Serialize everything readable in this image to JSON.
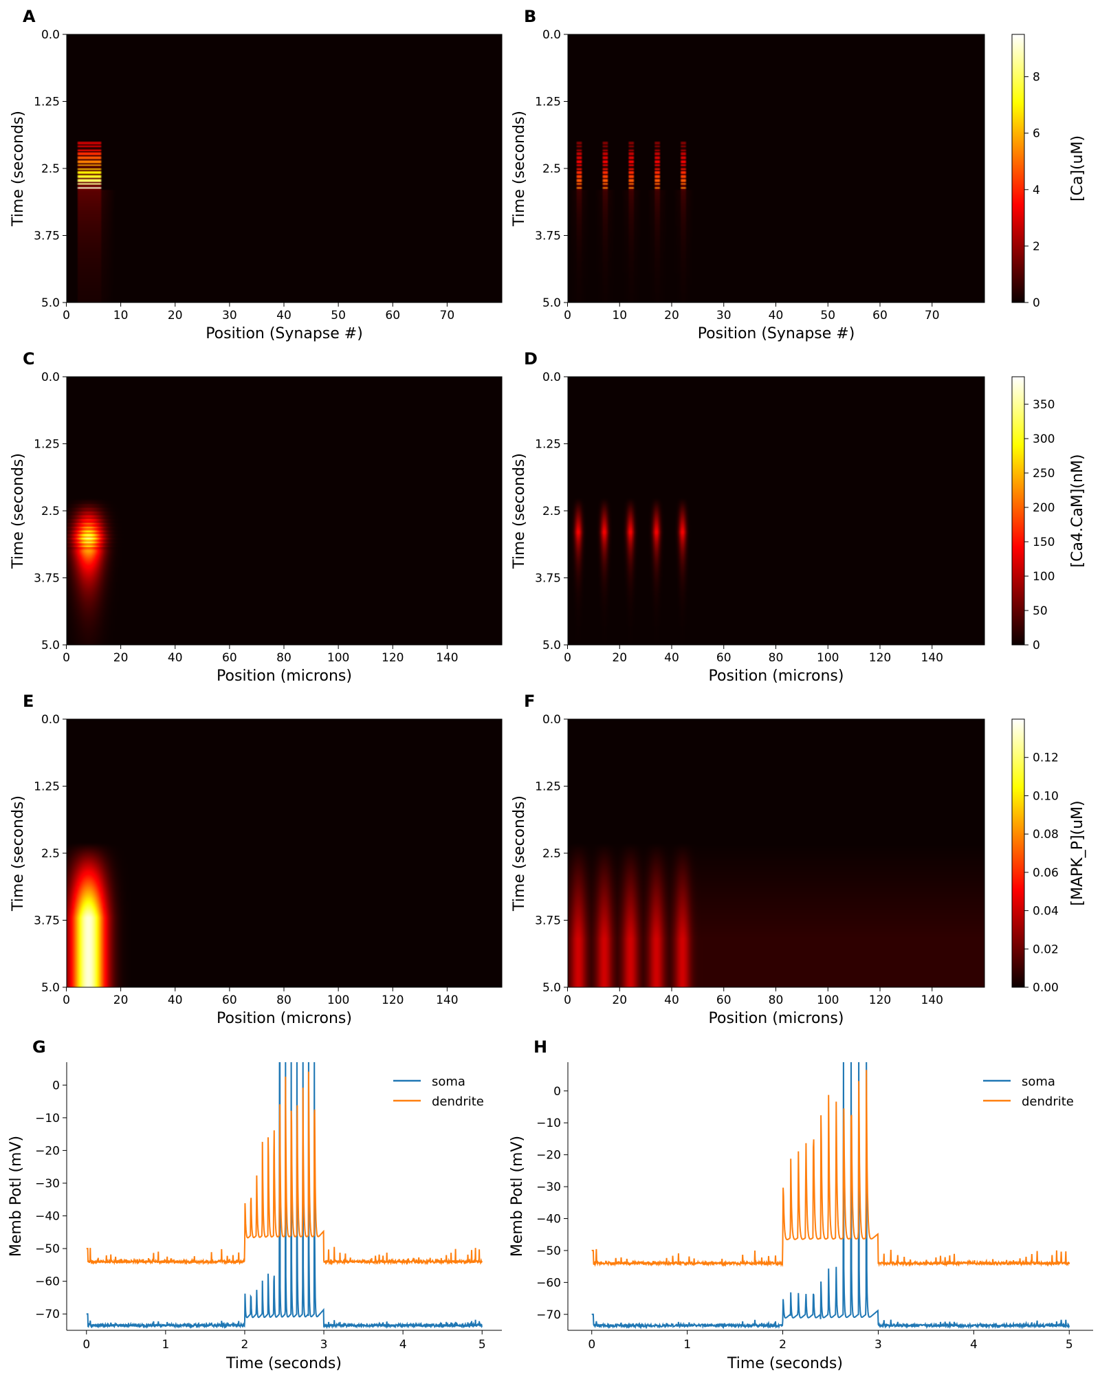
{
  "figure": {
    "panel_letters": [
      "A",
      "B",
      "C",
      "D",
      "E",
      "F",
      "G",
      "H"
    ]
  },
  "colors": {
    "colormap": "hot",
    "soma": "#1f77b4",
    "dendrite": "#ff7f0e",
    "background": "#ffffff"
  },
  "chart_data": [
    {
      "panel": "A",
      "type": "heatmap",
      "colormap": "hot",
      "xlabel": "Position (Synapse #)",
      "ylabel": "Time (seconds)",
      "xlim": [
        0,
        80
      ],
      "ylim": [
        5.0,
        0.0
      ],
      "xticks": [
        "0",
        "10",
        "20",
        "30",
        "40",
        "50",
        "60",
        "70"
      ],
      "yticks": [
        "0.0",
        "1.25",
        "2.5",
        "3.75",
        "5.0"
      ],
      "color_range": [
        0,
        9.5
      ],
      "description_values": {
        "active_positions": [
          [
            2,
            6
          ]
        ],
        "stim_time": [
          2.0,
          2.9
        ],
        "peak": 9.4
      }
    },
    {
      "panel": "B",
      "type": "heatmap",
      "colormap": "hot",
      "xlabel": "Position (Synapse #)",
      "ylabel": "Time (seconds)",
      "xlim": [
        0,
        80
      ],
      "ylim": [
        5.0,
        0.0
      ],
      "xticks": [
        "0",
        "10",
        "20",
        "30",
        "40",
        "50",
        "60",
        "70"
      ],
      "yticks": [
        "0.0",
        "1.25",
        "2.5",
        "3.75",
        "5.0"
      ],
      "colorbar": {
        "label": "[Ca](uM)",
        "ticks": [
          "0",
          "2",
          "4",
          "6",
          "8"
        ],
        "range": [
          0,
          9.5
        ]
      },
      "description_values": {
        "active_positions": [
          2,
          7,
          12,
          17,
          22
        ],
        "stim_time": [
          2.0,
          2.9
        ],
        "peak": 5.5
      }
    },
    {
      "panel": "C",
      "type": "heatmap",
      "colormap": "hot",
      "xlabel": "Position (microns)",
      "ylabel": "Time (seconds)",
      "xlim": [
        0,
        160
      ],
      "ylim": [
        5.0,
        0.0
      ],
      "xticks": [
        "0",
        "20",
        "40",
        "60",
        "80",
        "100",
        "120",
        "140"
      ],
      "yticks": [
        "0.0",
        "1.25",
        "2.5",
        "3.75",
        "5.0"
      ],
      "color_range": [
        0,
        390
      ],
      "description_values": {
        "center_position": 8,
        "peak_time": 3.0,
        "peak": 380
      }
    },
    {
      "panel": "D",
      "type": "heatmap",
      "colormap": "hot",
      "xlabel": "Position (microns)",
      "ylabel": "Time (seconds)",
      "xlim": [
        0,
        160
      ],
      "ylim": [
        5.0,
        0.0
      ],
      "xticks": [
        "0",
        "20",
        "40",
        "60",
        "80",
        "100",
        "120",
        "140"
      ],
      "yticks": [
        "0.0",
        "1.25",
        "2.5",
        "3.75",
        "5.0"
      ],
      "colorbar": {
        "label": "[Ca4.CaM](nM)",
        "ticks": [
          "0",
          "50",
          "100",
          "150",
          "200",
          "250",
          "300",
          "350"
        ],
        "range": [
          0,
          390
        ]
      },
      "description_values": {
        "center_positions": [
          4,
          14,
          24,
          34,
          44
        ],
        "peak_time": 2.9,
        "peak": 140
      }
    },
    {
      "panel": "E",
      "type": "heatmap",
      "colormap": "hot",
      "xlabel": "Position (microns)",
      "ylabel": "Time (seconds)",
      "xlim": [
        0,
        160
      ],
      "ylim": [
        5.0,
        0.0
      ],
      "xticks": [
        "0",
        "20",
        "40",
        "60",
        "80",
        "100",
        "120",
        "140"
      ],
      "yticks": [
        "0.0",
        "1.25",
        "2.5",
        "3.75",
        "5.0"
      ],
      "color_range": [
        0,
        0.14
      ],
      "description_values": {
        "center_position": 8,
        "onset_time": 2.4,
        "peak": 0.135
      }
    },
    {
      "panel": "F",
      "type": "heatmap",
      "colormap": "hot",
      "xlabel": "Position (microns)",
      "ylabel": "Time (seconds)",
      "xlim": [
        0,
        160
      ],
      "ylim": [
        5.0,
        0.0
      ],
      "xticks": [
        "0",
        "20",
        "40",
        "60",
        "80",
        "100",
        "120",
        "140"
      ],
      "yticks": [
        "0.0",
        "1.25",
        "2.5",
        "3.75",
        "5.0"
      ],
      "colorbar": {
        "label": "[MAPK_P](uM)",
        "ticks": [
          "0.00",
          "0.02",
          "0.04",
          "0.06",
          "0.08",
          "0.10",
          "0.12"
        ],
        "range": [
          0,
          0.14
        ]
      },
      "description_values": {
        "center_positions": [
          4,
          14,
          24,
          34,
          44
        ],
        "onset_time": 2.4,
        "peak": 0.05
      }
    },
    {
      "panel": "G",
      "type": "line",
      "xlabel": "Time (seconds)",
      "ylabel": "Memb Potl (mV)",
      "xlim": [
        -0.25,
        5.25
      ],
      "ylim": [
        -75,
        7
      ],
      "xticks": [
        "0",
        "1",
        "2",
        "3",
        "4",
        "5"
      ],
      "yticks": [
        "−70",
        "−60",
        "−50",
        "−40",
        "−30",
        "−20",
        "−10",
        "0"
      ],
      "legend": {
        "position": "top-right",
        "entries": [
          "soma",
          "dendrite"
        ]
      },
      "series": [
        {
          "name": "soma",
          "baseline": -73.5,
          "burst_start": 2.0,
          "burst_end": 2.95,
          "burst_spike_peaks": [
            -63,
            -61,
            -60,
            -59,
            -55,
            -52,
            -48,
            -45,
            -42,
            -38,
            -35,
            -32,
            -30
          ],
          "reaches_top_from": 2.4
        },
        {
          "name": "dendrite",
          "baseline": -54,
          "burst_start": 2.0,
          "burst_end": 2.95,
          "burst_spike_peaks": [
            -35,
            -30,
            -24,
            -16,
            -10,
            -4,
            0,
            3,
            4,
            4,
            4,
            7,
            7
          ]
        }
      ]
    },
    {
      "panel": "H",
      "type": "line",
      "xlabel": "Time (seconds)",
      "ylabel": "Memb Potl (mV)",
      "xlim": [
        -0.25,
        5.25
      ],
      "ylim": [
        -75,
        9
      ],
      "xticks": [
        "0",
        "1",
        "2",
        "3",
        "4",
        "5"
      ],
      "yticks": [
        "−70",
        "−60",
        "−50",
        "−40",
        "−30",
        "−20",
        "−10",
        "0"
      ],
      "legend": {
        "position": "top-right",
        "entries": [
          "soma",
          "dendrite"
        ]
      },
      "series": [
        {
          "name": "soma",
          "baseline": -73.5,
          "burst_start": 2.0,
          "burst_end": 2.95,
          "burst_spike_peaks": [
            -64,
            -63,
            -62,
            -61,
            -60,
            -58,
            -55,
            -52,
            -50,
            -47,
            -44,
            -40
          ],
          "reaches_top_from": 2.6
        },
        {
          "name": "dendrite",
          "baseline": -54,
          "burst_start": 2.0,
          "burst_end": 2.95,
          "burst_spike_peaks": [
            -27,
            -21,
            -16,
            -10,
            -5,
            -2,
            0,
            2,
            4,
            6,
            8,
            9
          ]
        }
      ]
    }
  ]
}
